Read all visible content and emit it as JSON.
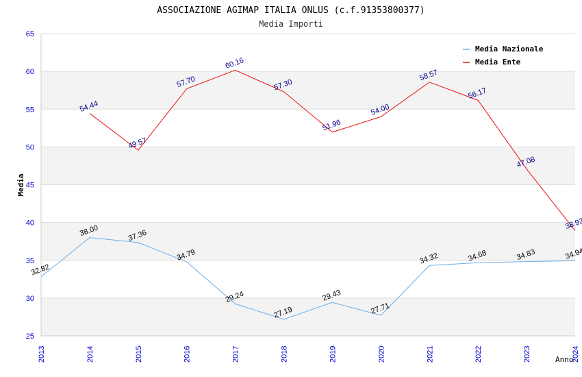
{
  "chart_data": {
    "type": "line",
    "title": "ASSOCIAZIONE AGIMAP ITALIA ONLUS (c.f.91353800377)",
    "subtitle": "Media Importi",
    "xlabel": "Anno",
    "ylabel": "Media",
    "x": [
      "2013",
      "2014",
      "2015",
      "2016",
      "2017",
      "2018",
      "2019",
      "2020",
      "2021",
      "2022",
      "2023",
      "2024"
    ],
    "ylim": [
      25,
      65
    ],
    "yticks": [
      "25",
      "30",
      "35",
      "40",
      "45",
      "50",
      "55",
      "60",
      "65"
    ],
    "legend_position": "top-right",
    "series": [
      {
        "name": "Media Nazionale",
        "color": "#6aaee8",
        "label_color": "#000000",
        "values": [
          32.82,
          38.0,
          37.36,
          34.79,
          29.24,
          27.19,
          29.43,
          27.71,
          34.32,
          34.68,
          34.83,
          34.94
        ],
        "labels": [
          "32.82",
          "38.00",
          "37.36",
          "34.79",
          "29.24",
          "27.19",
          "29.43",
          "27.71",
          "34.32",
          "34.68",
          "34.83",
          "34.94"
        ]
      },
      {
        "name": "Media Ente",
        "color": "#ee1111",
        "label_color": "#00008b",
        "values": [
          null,
          54.44,
          49.57,
          57.7,
          60.16,
          57.3,
          51.96,
          54.0,
          58.57,
          56.17,
          47.08,
          38.92
        ],
        "labels": [
          "",
          "54.44",
          "49.57",
          "57.70",
          "60.16",
          "57.30",
          "51.96",
          "54.00",
          "58.57",
          "56.17",
          "47.08",
          "38.92"
        ]
      }
    ],
    "colors": {
      "tick_labels": "#0000cc",
      "band": "#f3f3f3",
      "grid": "#dddddd"
    }
  }
}
